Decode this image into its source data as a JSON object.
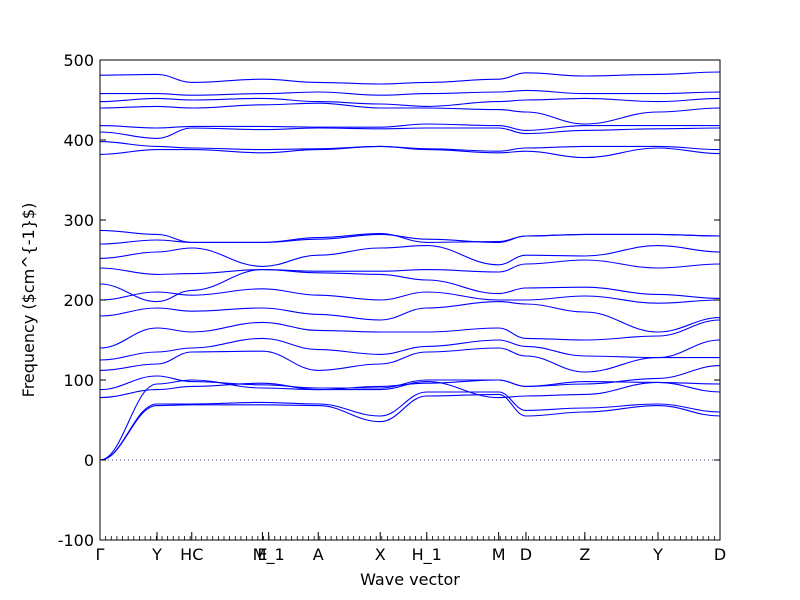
{
  "chart_data": {
    "type": "line",
    "title": "",
    "xlabel": "Wave vector",
    "ylabel": "Frequency ($cm^{-1}$)",
    "ylim": [
      -100,
      500
    ],
    "yticks": [
      -100,
      0,
      100,
      200,
      300,
      400,
      500
    ],
    "grid": false,
    "legend": "none",
    "line_color": "#0000ff",
    "zero_line_color": "#4b4b7a",
    "x_ticks": [
      {
        "label": "Γ",
        "pos": 0.0
      },
      {
        "label": "Y",
        "pos": 0.092
      },
      {
        "label": "HC",
        "pos": 0.148
      },
      {
        "label": "E",
        "pos": 0.262
      },
      {
        "label": "M_1",
        "pos": 0.272
      },
      {
        "label": "A",
        "pos": 0.352
      },
      {
        "label": "X",
        "pos": 0.452
      },
      {
        "label": "H_1",
        "pos": 0.527
      },
      {
        "label": "M",
        "pos": 0.643
      },
      {
        "label": "D",
        "pos": 0.687
      },
      {
        "label": "Z",
        "pos": 0.782
      },
      {
        "label": "Y",
        "pos": 0.9
      },
      {
        "label": "D",
        "pos": 1.0
      }
    ],
    "x_knots": [
      0.0,
      0.092,
      0.148,
      0.262,
      0.352,
      0.452,
      0.527,
      0.643,
      0.687,
      0.782,
      0.9,
      1.0
    ],
    "series": [
      {
        "values": [
          0,
          68,
          69,
          69,
          68,
          48,
          80,
          82,
          55,
          60,
          68,
          55
        ]
      },
      {
        "values": [
          0,
          70,
          70,
          72,
          70,
          55,
          85,
          85,
          62,
          65,
          70,
          60
        ]
      },
      {
        "values": [
          0,
          95,
          100,
          90,
          88,
          88,
          98,
          78,
          80,
          82,
          97,
          85
        ]
      },
      {
        "values": [
          78,
          88,
          92,
          96,
          88,
          92,
          96,
          100,
          92,
          98,
          97,
          95
        ]
      },
      {
        "values": [
          88,
          105,
          98,
          94,
          90,
          90,
          100,
          100,
          92,
          95,
          102,
          118
        ]
      },
      {
        "values": [
          112,
          120,
          135,
          136,
          112,
          120,
          135,
          140,
          130,
          110,
          128,
          128
        ]
      },
      {
        "values": [
          125,
          135,
          140,
          152,
          138,
          132,
          142,
          150,
          142,
          130,
          128,
          150
        ]
      },
      {
        "values": [
          140,
          165,
          160,
          172,
          162,
          160,
          160,
          165,
          152,
          150,
          155,
          175
        ]
      },
      {
        "values": [
          180,
          190,
          186,
          190,
          182,
          175,
          190,
          198,
          195,
          185,
          160,
          178
        ]
      },
      {
        "values": [
          200,
          210,
          206,
          214,
          206,
          200,
          210,
          200,
          200,
          205,
          196,
          200
        ]
      },
      {
        "values": [
          220,
          198,
          212,
          238,
          234,
          232,
          225,
          208,
          215,
          216,
          207,
          202
        ]
      },
      {
        "values": [
          240,
          232,
          233,
          238,
          236,
          236,
          238,
          235,
          245,
          250,
          240,
          245
        ]
      },
      {
        "values": [
          252,
          260,
          265,
          242,
          256,
          265,
          268,
          244,
          256,
          255,
          268,
          260
        ]
      },
      {
        "values": [
          270,
          275,
          272,
          272,
          276,
          282,
          276,
          272,
          280,
          282,
          282,
          280
        ]
      },
      {
        "values": [
          287,
          282,
          272,
          272,
          278,
          283,
          272,
          273,
          280,
          282,
          282,
          280
        ]
      },
      {
        "values": [
          382,
          388,
          388,
          384,
          388,
          392,
          388,
          384,
          386,
          378,
          390,
          383
        ]
      },
      {
        "values": [
          398,
          392,
          390,
          388,
          389,
          392,
          389,
          386,
          390,
          392,
          392,
          388
        ]
      },
      {
        "values": [
          410,
          402,
          415,
          413,
          415,
          414,
          415,
          415,
          408,
          412,
          414,
          415
        ]
      },
      {
        "values": [
          418,
          415,
          417,
          417,
          416,
          416,
          420,
          418,
          412,
          418,
          418,
          418
        ]
      },
      {
        "values": [
          440,
          442,
          440,
          444,
          446,
          440,
          440,
          438,
          435,
          420,
          435,
          440
        ]
      },
      {
        "values": [
          448,
          452,
          450,
          452,
          448,
          445,
          442,
          448,
          450,
          452,
          448,
          452
        ]
      },
      {
        "values": [
          458,
          458,
          456,
          458,
          460,
          456,
          458,
          460,
          462,
          458,
          458,
          460
        ]
      },
      {
        "values": [
          481,
          482,
          472,
          476,
          472,
          470,
          472,
          476,
          484,
          480,
          482,
          485
        ]
      }
    ]
  }
}
